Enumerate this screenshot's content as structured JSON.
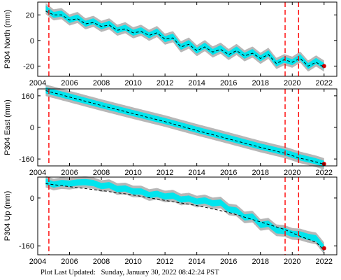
{
  "footer": {
    "label": "Plot Last Updated:",
    "datetime": "Sunday, January 30, 2022 08:42:24 PST"
  },
  "colors": {
    "data": "#00e5ee",
    "error": "#aaaaaa",
    "model": "#000000",
    "event": "#ff0000",
    "latest": "#cc0000"
  },
  "chart_data": [
    {
      "type": "line",
      "ylabel": "P304 North (mm)",
      "xlim": [
        2004.0,
        2022.8
      ],
      "ylim": [
        -28,
        30
      ],
      "yticks": [
        20,
        0,
        -20
      ],
      "xticks": [
        2004,
        2006,
        2008,
        2010,
        2012,
        2014,
        2016,
        2018,
        2020,
        2022
      ],
      "xticklabels": [
        "2004",
        "2006",
        "2008",
        "2010",
        "2012",
        "2014",
        "2016",
        "2018",
        "2020",
        "2022"
      ],
      "show_xticklabels": true,
      "event_lines": [
        2004.7,
        2019.55,
        2020.4
      ],
      "series": [
        {
          "role": "observed",
          "x": [
            2004.5,
            2005.0,
            2005.5,
            2006.0,
            2006.5,
            2007.0,
            2007.5,
            2008.0,
            2008.5,
            2009.0,
            2009.5,
            2010.0,
            2010.5,
            2011.0,
            2011.5,
            2012.0,
            2012.5,
            2013.0,
            2013.5,
            2014.0,
            2014.5,
            2015.0,
            2015.5,
            2016.0,
            2016.5,
            2017.0,
            2017.5,
            2018.0,
            2018.5,
            2019.0,
            2019.5,
            2020.0,
            2020.5,
            2021.0,
            2021.5,
            2022.0
          ],
          "y": [
            25,
            20,
            21,
            16,
            18,
            13,
            15,
            11,
            13,
            8,
            10,
            6,
            8,
            4,
            7,
            1,
            3,
            -5,
            -2,
            -8,
            -4,
            -9,
            -6,
            -11,
            -7,
            -12,
            -9,
            -14,
            -10,
            -18,
            -15,
            -17,
            -13,
            -20,
            -16,
            -20
          ]
        },
        {
          "role": "model",
          "x": [
            2004.5,
            2005.0,
            2005.5,
            2006.0,
            2006.5,
            2007.0,
            2007.5,
            2008.0,
            2008.5,
            2009.0,
            2009.5,
            2010.0,
            2010.5,
            2011.0,
            2011.5,
            2012.0,
            2012.5,
            2013.0,
            2013.5,
            2014.0,
            2014.5,
            2015.0,
            2015.5,
            2016.0,
            2016.5,
            2017.0,
            2017.5,
            2018.0,
            2018.5,
            2019.0,
            2019.5,
            2020.0,
            2020.5,
            2021.0,
            2021.5,
            2022.0
          ],
          "y": [
            23,
            20,
            20,
            16,
            17,
            13,
            14,
            11,
            12,
            8,
            9,
            6,
            7,
            4,
            6,
            1,
            2,
            -5,
            -3,
            -8,
            -5,
            -9,
            -7,
            -11,
            -8,
            -12,
            -10,
            -14,
            -11,
            -18,
            -15,
            -17,
            -14,
            -20,
            -17,
            -21
          ]
        }
      ]
    },
    {
      "type": "line",
      "ylabel": "P304 East (mm)",
      "xlim": [
        2004.0,
        2022.8
      ],
      "ylim": [
        -195,
        195
      ],
      "yticks": [
        160,
        0,
        -160
      ],
      "xticks": [
        2004,
        2006,
        2008,
        2010,
        2012,
        2014,
        2016,
        2018,
        2020,
        2022
      ],
      "xticklabels": [
        "2004",
        "2006",
        "2008",
        "2010",
        "2012",
        "2014",
        "2016",
        "2018",
        "2020",
        "2022"
      ],
      "show_xticklabels": true,
      "event_lines": [
        2004.7,
        2019.55,
        2020.4
      ],
      "series": [
        {
          "role": "observed",
          "x": [
            2004.5,
            2006.0,
            2008.0,
            2010.0,
            2012.0,
            2014.0,
            2016.0,
            2018.0,
            2019.5,
            2020.5,
            2021.5,
            2022.0
          ],
          "y": [
            188,
            156,
            113,
            72,
            32,
            -12,
            -54,
            -97,
            -126,
            -152,
            -172,
            -185
          ]
        },
        {
          "role": "model",
          "x": [
            2004.5,
            2006.0,
            2008.0,
            2010.0,
            2012.0,
            2014.0,
            2016.0,
            2018.0,
            2019.5,
            2020.5,
            2021.5,
            2022.0
          ],
          "y": [
            186,
            154,
            111,
            70,
            29,
            -16,
            -58,
            -101,
            -130,
            -156,
            -175,
            -187
          ]
        }
      ]
    },
    {
      "type": "line",
      "ylabel": "P304 Up (mm)",
      "xlim": [
        2004.0,
        2022.8
      ],
      "ylim": [
        -190,
        70
      ],
      "yticks": [
        0,
        -160
      ],
      "xticks": [
        2004,
        2006,
        2008,
        2010,
        2012,
        2014,
        2016,
        2018,
        2020,
        2022
      ],
      "xticklabels": [
        "2004",
        "2006",
        "2008",
        "2010",
        "2012",
        "2014",
        "2016",
        "2018",
        "2020",
        "2022"
      ],
      "show_xticklabels": true,
      "event_lines": [
        2004.7,
        2019.55,
        2020.4
      ],
      "series": [
        {
          "role": "observed",
          "x": [
            2004.5,
            2005.0,
            2005.5,
            2006.0,
            2006.5,
            2007.0,
            2007.5,
            2008.0,
            2008.5,
            2009.0,
            2009.5,
            2010.0,
            2010.5,
            2011.0,
            2011.5,
            2012.0,
            2012.5,
            2013.0,
            2013.5,
            2014.0,
            2014.5,
            2015.0,
            2015.5,
            2016.0,
            2016.5,
            2017.0,
            2017.5,
            2018.0,
            2018.5,
            2019.0,
            2019.5,
            2020.0,
            2020.5,
            2021.0,
            2021.5,
            2022.0
          ],
          "y": [
            55,
            45,
            50,
            48,
            52,
            53,
            50,
            40,
            43,
            30,
            32,
            22,
            22,
            10,
            14,
            5,
            8,
            -5,
            -2,
            -12,
            -8,
            -18,
            -15,
            -38,
            -42,
            -65,
            -62,
            -90,
            -86,
            -108,
            -110,
            -120,
            -122,
            -130,
            -135,
            -168
          ]
        },
        {
          "role": "model",
          "x": [
            2004.5,
            2006.0,
            2008.0,
            2010.0,
            2012.0,
            2014.0,
            2016.0,
            2018.0,
            2019.5,
            2020.5,
            2021.5,
            2022.0
          ],
          "y": [
            48,
            38,
            25,
            10,
            -8,
            -25,
            -48,
            -80,
            -105,
            -128,
            -148,
            -175
          ]
        }
      ]
    }
  ]
}
